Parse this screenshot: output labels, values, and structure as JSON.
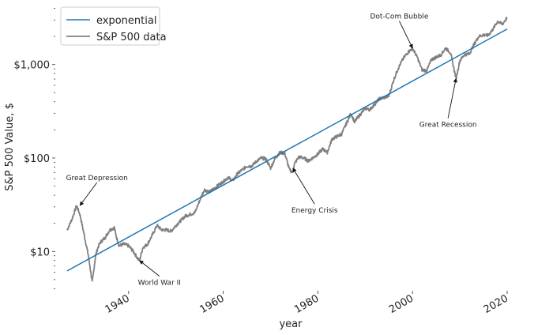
{
  "chart_data": {
    "type": "line",
    "title": "",
    "xlabel": "year",
    "ylabel": "S&P 500 Value, $",
    "yscale": "log",
    "xlim": [
      1924.5,
      2020.5
    ],
    "ylim": [
      3.8,
      4200
    ],
    "xticks": [
      {
        "value": 1940,
        "label": "1940"
      },
      {
        "value": 1960,
        "label": "1960"
      },
      {
        "value": 1980,
        "label": "1980"
      },
      {
        "value": 2000,
        "label": "2000"
      },
      {
        "value": 2020,
        "label": "2020"
      }
    ],
    "yticks": [
      {
        "value": 10,
        "label": "$10"
      },
      {
        "value": 100,
        "label": "$100"
      },
      {
        "value": 1000,
        "label": "$1,000"
      }
    ],
    "grid": false,
    "legend_position": "top-left",
    "series": [
      {
        "name": "exponential",
        "color": "#1f77b4",
        "x": [
          1927,
          2020
        ],
        "y": [
          6.2,
          2400
        ]
      },
      {
        "name": "S&P 500 data",
        "color": "#808080",
        "x": [
          1927,
          1928,
          1929,
          1929.7,
          1930.5,
          1931.5,
          1932.3,
          1932.5,
          1933,
          1933.5,
          1934,
          1935,
          1936,
          1937,
          1937.3,
          1938,
          1939,
          1940,
          1941,
          1942,
          1942.3,
          1943,
          1944,
          1945,
          1946,
          1947,
          1948,
          1949,
          1950,
          1952,
          1954,
          1955,
          1956,
          1957,
          1958,
          1960,
          1961,
          1962,
          1963,
          1965,
          1966,
          1967,
          1968,
          1969,
          1970,
          1971,
          1972,
          1973,
          1974,
          1974.7,
          1975,
          1976,
          1977,
          1978,
          1980,
          1981,
          1982,
          1983,
          1985,
          1987,
          1987.8,
          1988,
          1990,
          1991,
          1993,
          1995,
          1996,
          1997,
          1998,
          1999,
          2000,
          2001,
          2002,
          2003,
          2004,
          2005,
          2006,
          2007,
          2008,
          2009.2,
          2010,
          2011,
          2012,
          2013,
          2014,
          2015,
          2016,
          2017,
          2018,
          2019,
          2020
        ],
        "y": [
          17,
          22,
          31,
          25,
          16,
          9,
          4.7,
          5.5,
          9,
          11,
          12.5,
          14,
          17,
          18,
          15,
          11.5,
          12,
          11.5,
          10,
          8.3,
          8,
          11,
          12,
          15,
          19,
          17,
          17,
          16.5,
          19,
          24,
          26,
          35,
          46,
          43,
          47,
          56,
          62,
          57,
          68,
          82,
          82,
          92,
          100,
          98,
          78,
          100,
          115,
          112,
          75,
          70,
          86,
          103,
          100,
          93,
          110,
          125,
          115,
          160,
          180,
          300,
          240,
          255,
          340,
          330,
          430,
          460,
          680,
          920,
          1150,
          1350,
          1500,
          1200,
          880,
          860,
          1130,
          1200,
          1270,
          1500,
          1350,
          710,
          1100,
          1280,
          1300,
          1640,
          2000,
          2080,
          2050,
          2400,
          2900,
          2700,
          3200
        ]
      }
    ],
    "annotations": [
      {
        "text": "Great Depression",
        "x": 1929.7,
        "y": 31,
        "text_x": 1933.3,
        "text_y": 58
      },
      {
        "text": "World War II",
        "x": 1942.3,
        "y": 8,
        "text_x": 1946.5,
        "text_y": 4.4
      },
      {
        "text": "Energy Crisis",
        "x": 1974.7,
        "y": 78,
        "text_x": 1979.3,
        "text_y": 26
      },
      {
        "text": "Dot-Com Bubble",
        "x": 2000,
        "y": 1500,
        "text_x": 1997.2,
        "text_y": 3100
      },
      {
        "text": "Great Recession",
        "x": 2009.2,
        "y": 710,
        "text_x": 2007.5,
        "text_y": 215
      }
    ]
  }
}
